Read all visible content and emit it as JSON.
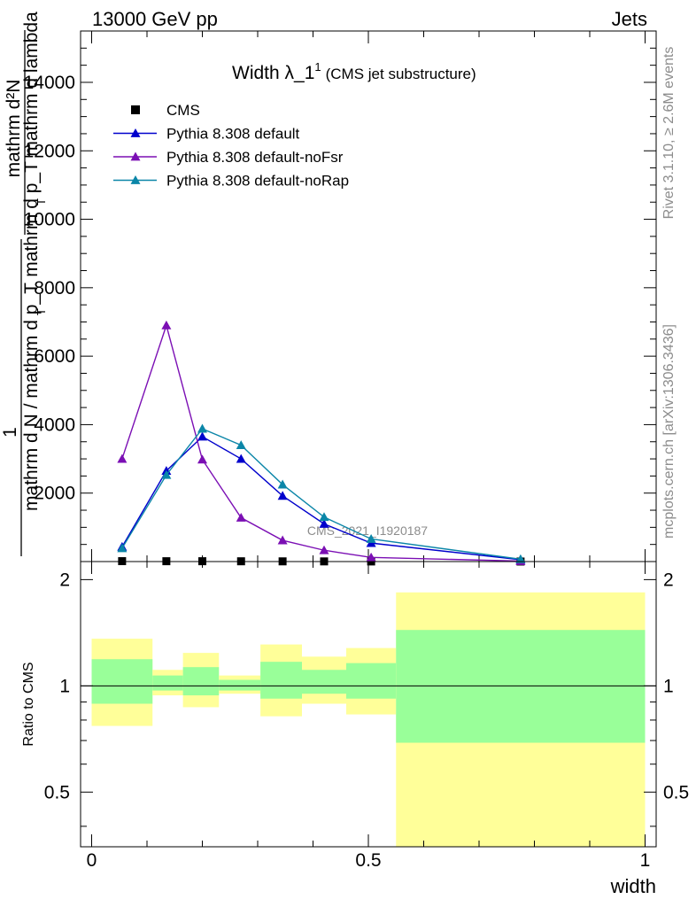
{
  "header": {
    "energy_label": "13000 GeV pp",
    "process_label": "Jets"
  },
  "side": {
    "rivet_label": "Rivet 3.1.10, ≥ 2.6M events",
    "mcplots_label": "mcplots.cern.ch [arXiv:1306.3436]"
  },
  "watermark": "CMS_2021_I1920187",
  "chart_data": [
    {
      "type": "line",
      "title": "Width λ_1",
      "title_superscript": "1",
      "subtitle": "(CMS jet substructure)",
      "ylabel_top_numerator": "mathrm d²N",
      "ylabel_top_denominator": "mathrm d p_T mathrm d lambda",
      "ylabel_bottom_numerator": "1",
      "ylabel_bottom_denominator": "mathrm d N / mathrm d p_T",
      "ylabel_subscript": "T",
      "xlim": [
        -0.02,
        1.02
      ],
      "ylim": [
        0,
        15500
      ],
      "yticks": [
        2000,
        4000,
        6000,
        8000,
        10000,
        12000,
        14000
      ],
      "ytick_labels": [
        "2000",
        "4000",
        "6000",
        "8000",
        "10000",
        "12000",
        "14000"
      ],
      "legend_position": "top-left",
      "series": [
        {
          "name": "CMS",
          "marker": "square",
          "color": "#000000",
          "x": [
            0.055,
            0.135,
            0.2,
            0.27,
            0.345,
            0.42,
            0.505,
            0.775
          ],
          "values": [
            12,
            10,
            10,
            8,
            6,
            5,
            3,
            1
          ]
        },
        {
          "name": "Pythia 8.308 default",
          "marker": "triangle",
          "color": "#0000cc",
          "x": [
            0.055,
            0.135,
            0.2,
            0.27,
            0.345,
            0.42,
            0.505,
            0.775
          ],
          "values": [
            430,
            2650,
            3650,
            3000,
            1920,
            1100,
            540,
            55
          ]
        },
        {
          "name": "Pythia 8.308 default-noFsr",
          "marker": "triangle",
          "color": "#7b0fb4",
          "x": [
            0.055,
            0.135,
            0.2,
            0.27,
            0.345,
            0.42,
            0.505,
            0.775
          ],
          "values": [
            3000,
            6900,
            2980,
            1280,
            620,
            330,
            120,
            15
          ]
        },
        {
          "name": "Pythia 8.308 default-noRap",
          "marker": "triangle",
          "color": "#0b86a8",
          "x": [
            0.055,
            0.135,
            0.2,
            0.27,
            0.345,
            0.42,
            0.505,
            0.775
          ],
          "values": [
            390,
            2530,
            3880,
            3400,
            2250,
            1300,
            660,
            70
          ]
        }
      ]
    },
    {
      "type": "area",
      "ylabel": "Ratio to CMS",
      "xlabel": "width",
      "xlim": [
        -0.02,
        1.02
      ],
      "ylim": [
        0.35,
        2.25
      ],
      "xticks": [
        0,
        0.5,
        1
      ],
      "xtick_labels": [
        "0",
        "0.5",
        "1"
      ],
      "yticks": [
        0.5,
        1,
        2
      ],
      "ytick_labels": [
        "0.5",
        "1",
        "2"
      ],
      "reference_line": 1,
      "bands": {
        "outer_color": "#ffff99",
        "inner_color": "#99ff99",
        "bins": [
          {
            "x0": 0.0,
            "x1": 0.11,
            "outer": [
              0.77,
              1.36
            ],
            "inner": [
              0.89,
              1.19
            ]
          },
          {
            "x0": 0.11,
            "x1": 0.165,
            "outer": [
              0.94,
              1.11
            ],
            "inner": [
              0.97,
              1.07
            ]
          },
          {
            "x0": 0.165,
            "x1": 0.23,
            "outer": [
              0.87,
              1.24
            ],
            "inner": [
              0.94,
              1.13
            ]
          },
          {
            "x0": 0.23,
            "x1": 0.305,
            "outer": [
              0.95,
              1.07
            ],
            "inner": [
              0.97,
              1.04
            ]
          },
          {
            "x0": 0.305,
            "x1": 0.38,
            "outer": [
              0.82,
              1.31
            ],
            "inner": [
              0.92,
              1.17
            ]
          },
          {
            "x0": 0.38,
            "x1": 0.46,
            "outer": [
              0.89,
              1.21
            ],
            "inner": [
              0.95,
              1.11
            ]
          },
          {
            "x0": 0.46,
            "x1": 0.55,
            "outer": [
              0.83,
              1.28
            ],
            "inner": [
              0.92,
              1.16
            ]
          },
          {
            "x0": 0.55,
            "x1": 1.0,
            "outer": [
              0.35,
              1.84
            ],
            "inner": [
              0.69,
              1.44
            ]
          }
        ]
      }
    }
  ]
}
